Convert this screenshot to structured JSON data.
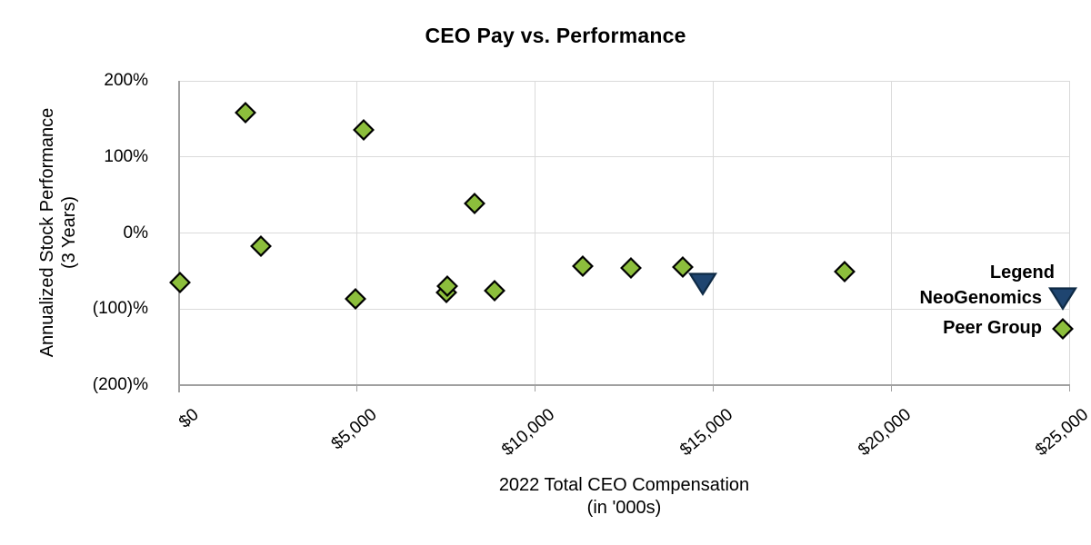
{
  "chart_data": {
    "type": "scatter",
    "title": "CEO Pay vs. Performance",
    "xlabel_line1": "2022 Total CEO Compensation",
    "xlabel_line2": "(in '000s)",
    "ylabel_line1": "Annualized Stock Performance",
    "ylabel_line2": "(3 Years)",
    "xlim": [
      0,
      25000
    ],
    "ylim": [
      -200,
      200
    ],
    "grid": true,
    "x_ticks": [
      {
        "value": 0,
        "label": "$0"
      },
      {
        "value": 5000,
        "label": "$5,000"
      },
      {
        "value": 10000,
        "label": "$10,000"
      },
      {
        "value": 15000,
        "label": "$15,000"
      },
      {
        "value": 20000,
        "label": "$20,000"
      },
      {
        "value": 25000,
        "label": "$25,000"
      }
    ],
    "y_ticks": [
      {
        "value": 200,
        "label": "200%"
      },
      {
        "value": 100,
        "label": "100%"
      },
      {
        "value": 0,
        "label": "0%"
      },
      {
        "value": -100,
        "label": "(100)%"
      },
      {
        "value": -200,
        "label": "(200)%"
      }
    ],
    "legend": {
      "title": "Legend",
      "position": "right",
      "items": [
        {
          "name": "NeoGenomics",
          "marker": "triangle-down",
          "color": "#1F4570",
          "outline": "#0E2A45"
        },
        {
          "name": "Peer Group",
          "marker": "diamond",
          "color": "#8CBE3C",
          "outline": "#000000"
        }
      ]
    },
    "series": [
      {
        "name": "NeoGenomics",
        "marker": "triangle-down",
        "color": "#1F4570",
        "outline": "#0E2A45",
        "points": [
          {
            "x": 14700,
            "y": -67
          }
        ]
      },
      {
        "name": "Peer Group",
        "marker": "diamond",
        "color": "#8CBE3C",
        "outline": "#000000",
        "points": [
          {
            "x": 20,
            "y": -65
          },
          {
            "x": 1860,
            "y": 158
          },
          {
            "x": 2300,
            "y": -17
          },
          {
            "x": 4950,
            "y": -87
          },
          {
            "x": 5180,
            "y": 135
          },
          {
            "x": 7500,
            "y": -78
          },
          {
            "x": 7530,
            "y": -70
          },
          {
            "x": 8300,
            "y": 39
          },
          {
            "x": 8850,
            "y": -76
          },
          {
            "x": 11350,
            "y": -44
          },
          {
            "x": 12700,
            "y": -46
          },
          {
            "x": 14150,
            "y": -45
          },
          {
            "x": 18700,
            "y": -51
          }
        ]
      }
    ],
    "colors": {
      "peer_green": "#8CBE3C",
      "neo_navy": "#1F4570",
      "gridline": "#DADADA",
      "axis": "#A0A0A0",
      "text": "#000000",
      "background": "#FFFFFF"
    }
  }
}
